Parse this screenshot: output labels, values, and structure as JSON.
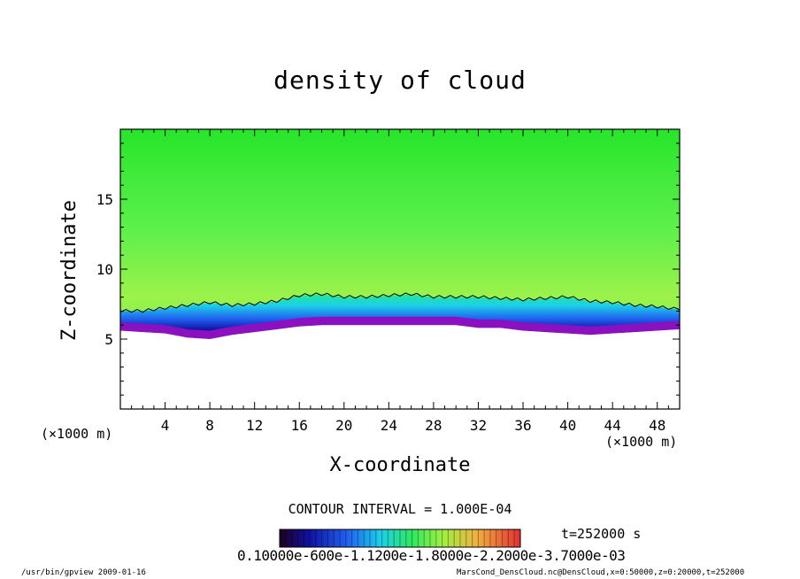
{
  "chart_data": {
    "type": "heatmap",
    "title": "density of cloud",
    "xlabel": "X-coordinate",
    "ylabel": "Z-coordinate",
    "x_unit_label": "(×1000 m)",
    "x_ticks": [
      4,
      8,
      12,
      16,
      20,
      24,
      28,
      32,
      36,
      40,
      44,
      48
    ],
    "y_ticks": [
      5,
      10,
      15
    ],
    "xlim": [
      0,
      50
    ],
    "ylim": [
      0,
      20
    ],
    "cloud_base_z_profile": {
      "x": [
        0,
        2,
        4,
        6,
        8,
        10,
        12,
        14,
        16,
        18,
        20,
        22,
        24,
        26,
        28,
        30,
        32,
        34,
        36,
        38,
        40,
        42,
        44,
        46,
        48,
        50
      ],
      "z_top": [
        7.0,
        7.0,
        7.2,
        7.4,
        7.6,
        7.4,
        7.5,
        7.7,
        8.1,
        8.2,
        8.0,
        8.0,
        8.1,
        8.2,
        8.0,
        8.0,
        8.0,
        7.9,
        7.8,
        7.9,
        8.0,
        7.7,
        7.6,
        7.4,
        7.3,
        7.1
      ],
      "z_base": [
        5.6,
        5.5,
        5.4,
        5.1,
        5.0,
        5.3,
        5.5,
        5.7,
        5.9,
        6.0,
        6.0,
        6.0,
        6.0,
        6.0,
        6.0,
        6.0,
        5.8,
        5.8,
        5.6,
        5.5,
        5.4,
        5.3,
        5.4,
        5.5,
        5.6,
        5.7
      ]
    },
    "colorbar_labels": "0.10000e-600e-1.1200e-1.8000e-2.2000e-3.7000e-03",
    "contour_interval": "CONTOUR INTERVAL = 1.000E-04"
  },
  "time_label": "t=252000 s",
  "footer_left": "/usr/bin/gpview   2009-01-16",
  "footer_right": "MarsCond_DensCloud.nc@DensCloud,x=0:50000,z=0:20000,t=252000",
  "colors": {
    "field_top": "#27e52a",
    "field_mid": "#5cf04a",
    "field_yellowish": "#9cf24a",
    "cloud_green": "#22e898",
    "cloud_cyan": "#1cd0e8",
    "cloud_blue": "#2060f0",
    "cloud_deep": "#1010a0",
    "cloud_purple": "#8a10c0"
  }
}
